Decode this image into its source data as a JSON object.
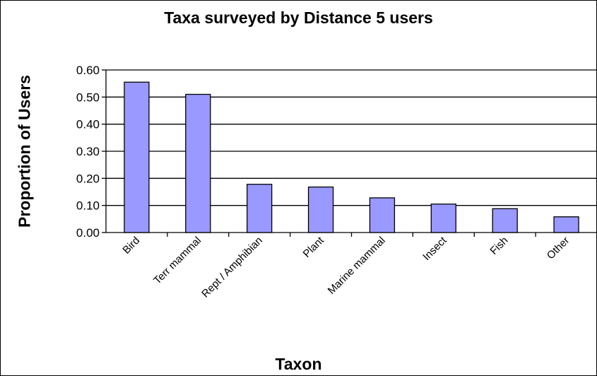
{
  "colors": {
    "bar_fill": "#9999ff",
    "bar_stroke": "#000000",
    "grid": "#000000",
    "background": "#ffffff"
  },
  "chart_data": {
    "type": "bar",
    "title": "Taxa surveyed by Distance 5 users",
    "xlabel": "Taxon",
    "ylabel": "Proportion of Users",
    "categories": [
      "Bird",
      "Terr mammal",
      "Rept / Amphibian",
      "Plant",
      "Marine mammal",
      "Insect",
      "Fish",
      "Other"
    ],
    "values": [
      0.555,
      0.51,
      0.178,
      0.168,
      0.128,
      0.105,
      0.088,
      0.058
    ],
    "ylim": [
      0,
      0.6
    ],
    "yticks": [
      "0.00",
      "0.10",
      "0.20",
      "0.30",
      "0.40",
      "0.50",
      "0.60"
    ],
    "grid": true,
    "legend": "none"
  }
}
